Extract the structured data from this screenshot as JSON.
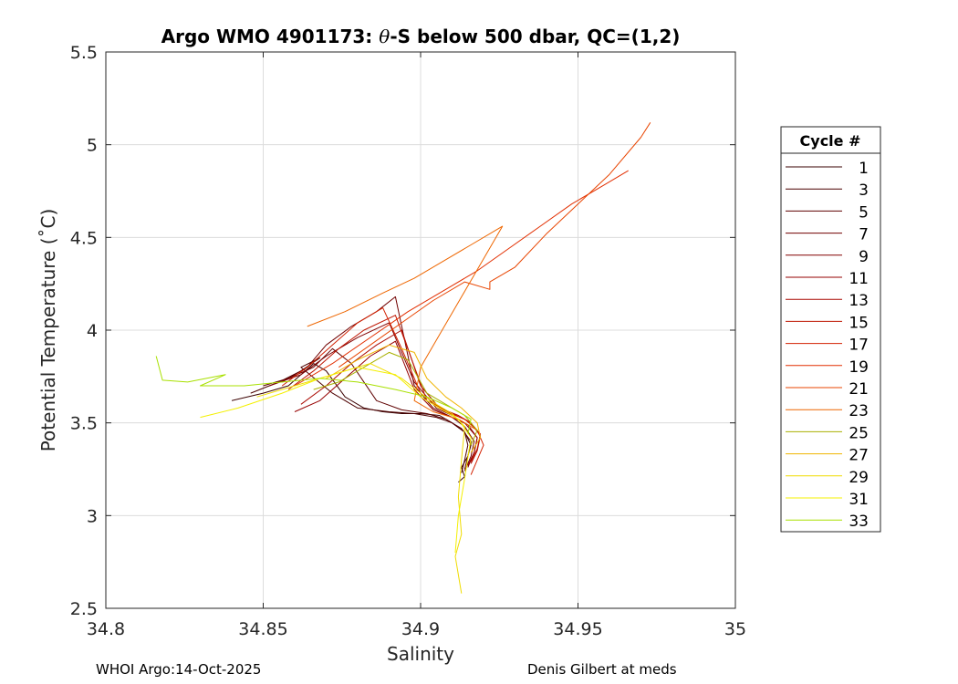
{
  "chart_data": {
    "type": "line",
    "title_prefix": "Argo WMO 4901173: ",
    "title_theta": "θ",
    "title_suffix": "-S below 500 dbar,  QC=(1,2)",
    "xlabel": "Salinity",
    "ylabel": "Potential Temperature (˚C)",
    "xlim": [
      34.8,
      35.0
    ],
    "ylim": [
      2.5,
      5.5
    ],
    "xticks": [
      34.8,
      34.85,
      34.9,
      34.95,
      35
    ],
    "xtick_labels": [
      "34.8",
      "34.85",
      "34.9",
      "34.95",
      "35"
    ],
    "yticks": [
      2.5,
      3,
      3.5,
      4,
      4.5,
      5,
      5.5
    ],
    "ytick_labels": [
      "2.5",
      "3",
      "3.5",
      "4",
      "4.5",
      "5",
      "5.5"
    ],
    "grid": true,
    "legend_title": "Cycle #",
    "legend_position": "right",
    "series": [
      {
        "name": "1",
        "color": "#3a0000",
        "x": [
          34.84,
          34.85,
          34.858,
          34.862,
          34.866,
          34.87,
          34.876,
          34.882,
          34.888,
          34.894,
          34.9,
          34.906,
          34.91,
          34.914,
          34.916,
          34.915,
          34.913,
          34.914,
          34.912
        ],
        "y": [
          3.62,
          3.66,
          3.7,
          3.76,
          3.82,
          3.78,
          3.64,
          3.58,
          3.56,
          3.55,
          3.55,
          3.54,
          3.5,
          3.45,
          3.38,
          3.32,
          3.26,
          3.21,
          3.18
        ]
      },
      {
        "name": "3",
        "color": "#4c0000",
        "x": [
          34.846,
          34.855,
          34.862,
          34.868,
          34.862,
          34.872,
          34.88,
          34.89,
          34.898,
          34.905,
          34.91,
          34.914,
          34.915,
          34.914,
          34.913
        ],
        "y": [
          3.66,
          3.72,
          3.78,
          3.85,
          3.8,
          3.66,
          3.58,
          3.56,
          3.55,
          3.53,
          3.5,
          3.45,
          3.38,
          3.3,
          3.23
        ]
      },
      {
        "name": "5",
        "color": "#5e0000",
        "x": [
          34.85,
          34.858,
          34.866,
          34.872,
          34.878,
          34.886,
          34.894,
          34.902,
          34.908,
          34.913,
          34.916,
          34.915,
          34.914
        ],
        "y": [
          3.7,
          3.74,
          3.8,
          3.9,
          3.82,
          3.62,
          3.57,
          3.55,
          3.52,
          3.47,
          3.4,
          3.32,
          3.25
        ]
      },
      {
        "name": "7",
        "color": "#700000",
        "x": [
          34.856,
          34.864,
          34.87,
          34.878,
          34.886,
          34.892,
          34.898,
          34.904,
          34.91,
          34.914,
          34.917,
          34.916,
          34.914
        ],
        "y": [
          3.72,
          3.8,
          3.92,
          4.02,
          4.1,
          4.18,
          3.7,
          3.58,
          3.53,
          3.48,
          3.4,
          3.32,
          3.24
        ]
      },
      {
        "name": "9",
        "color": "#820000",
        "x": [
          34.852,
          34.862,
          34.87,
          34.88,
          34.89,
          34.898,
          34.905,
          34.91,
          34.914,
          34.918,
          34.917,
          34.915
        ],
        "y": [
          3.7,
          3.76,
          3.86,
          3.96,
          4.04,
          3.72,
          3.58,
          3.54,
          3.5,
          3.42,
          3.34,
          3.26
        ]
      },
      {
        "name": "11",
        "color": "#960000",
        "x": [
          34.86,
          34.868,
          34.876,
          34.884,
          34.892,
          34.898,
          34.904,
          34.91,
          34.915,
          34.918,
          34.917,
          34.915
        ],
        "y": [
          3.56,
          3.62,
          3.74,
          3.86,
          3.94,
          3.68,
          3.57,
          3.53,
          3.49,
          3.42,
          3.34,
          3.27
        ]
      },
      {
        "name": "13",
        "color": "#aa0800",
        "x": [
          34.862,
          34.87,
          34.878,
          34.886,
          34.894,
          34.9,
          34.906,
          34.912,
          34.916,
          34.919,
          34.918,
          34.916
        ],
        "y": [
          3.6,
          3.7,
          3.82,
          3.92,
          4.0,
          3.7,
          3.58,
          3.54,
          3.5,
          3.43,
          3.35,
          3.28
        ]
      },
      {
        "name": "15",
        "color": "#be1400",
        "x": [
          34.858,
          34.866,
          34.874,
          34.882,
          34.892,
          34.902,
          34.91,
          34.915,
          34.919,
          34.918,
          34.916
        ],
        "y": [
          3.68,
          3.78,
          3.9,
          4.0,
          4.08,
          3.62,
          3.55,
          3.51,
          3.44,
          3.36,
          3.29
        ]
      },
      {
        "name": "17",
        "color": "#d22000",
        "x": [
          34.856,
          34.864,
          34.872,
          34.88,
          34.888,
          34.894,
          34.9,
          34.908,
          34.914,
          34.918,
          34.92,
          34.918,
          34.916
        ],
        "y": [
          3.7,
          3.8,
          3.92,
          4.04,
          4.12,
          3.9,
          3.66,
          3.56,
          3.52,
          3.46,
          3.38,
          3.3,
          3.22
        ]
      },
      {
        "name": "19",
        "color": "#e22e00",
        "x": [
          34.86,
          34.872,
          34.884,
          34.896,
          34.908,
          34.918,
          34.928,
          34.938,
          34.948,
          34.958,
          34.966
        ],
        "y": [
          3.7,
          3.82,
          3.96,
          4.1,
          4.22,
          4.32,
          4.44,
          4.56,
          4.68,
          4.78,
          4.86
        ]
      },
      {
        "name": "21",
        "color": "#e84400",
        "x": [
          34.874,
          34.884,
          34.894,
          34.904,
          34.914,
          34.922,
          34.922,
          34.93,
          34.94,
          34.95,
          34.96,
          34.97,
          34.973
        ],
        "y": [
          3.8,
          3.92,
          4.04,
          4.16,
          4.26,
          4.22,
          4.26,
          4.34,
          4.52,
          4.68,
          4.84,
          5.04,
          5.12
        ]
      },
      {
        "name": "23",
        "color": "#ee6600",
        "x": [
          34.864,
          34.876,
          34.888,
          34.898,
          34.906,
          34.916,
          34.926,
          34.9,
          34.898,
          34.904,
          34.912,
          34.918
        ],
        "y": [
          4.02,
          4.1,
          4.2,
          4.28,
          4.36,
          4.46,
          4.56,
          3.8,
          3.62,
          3.56,
          3.52,
          3.46
        ]
      },
      {
        "name": "25",
        "color": "#a8b000",
        "x": [
          34.866,
          34.874,
          34.882,
          34.89,
          34.896,
          34.902,
          34.908,
          34.914,
          34.918,
          34.916
        ],
        "y": [
          3.68,
          3.72,
          3.8,
          3.88,
          3.84,
          3.66,
          3.6,
          3.54,
          3.46,
          3.38
        ]
      },
      {
        "name": "27",
        "color": "#f0b400",
        "x": [
          34.87,
          34.88,
          34.89,
          34.898,
          34.902,
          34.908,
          34.913,
          34.918,
          34.919,
          34.916
        ],
        "y": [
          3.74,
          3.84,
          3.92,
          3.88,
          3.74,
          3.64,
          3.58,
          3.5,
          3.42,
          3.34
        ]
      },
      {
        "name": "29",
        "color": "#f0dc00",
        "x": [
          34.848,
          34.86,
          34.872,
          34.884,
          34.894,
          34.9,
          34.905,
          34.91,
          34.914,
          34.913,
          34.912,
          34.913,
          34.911,
          34.913
        ],
        "y": [
          3.64,
          3.7,
          3.76,
          3.82,
          3.74,
          3.66,
          3.6,
          3.55,
          3.48,
          3.3,
          3.1,
          2.9,
          2.78,
          2.58
        ]
      },
      {
        "name": "31",
        "color": "#f4f000",
        "x": [
          34.83,
          34.842,
          34.856,
          34.868,
          34.88,
          34.892,
          34.9,
          34.906,
          34.912,
          34.916,
          34.914,
          34.912,
          34.911
        ],
        "y": [
          3.53,
          3.58,
          3.66,
          3.74,
          3.8,
          3.76,
          3.64,
          3.58,
          3.52,
          3.42,
          3.2,
          3.0,
          2.8
        ]
      },
      {
        "name": "33",
        "color": "#a8e000",
        "x": [
          34.816,
          34.818,
          34.826,
          34.838,
          34.83,
          34.844,
          34.856,
          34.868,
          34.88,
          34.892,
          34.902,
          34.91,
          34.916,
          34.915
        ],
        "y": [
          3.86,
          3.73,
          3.72,
          3.76,
          3.7,
          3.7,
          3.72,
          3.74,
          3.72,
          3.68,
          3.64,
          3.58,
          3.52,
          3.44
        ]
      }
    ]
  },
  "footer": {
    "left": "WHOI Argo:14-Oct-2025",
    "right": "Denis Gilbert at meds"
  }
}
